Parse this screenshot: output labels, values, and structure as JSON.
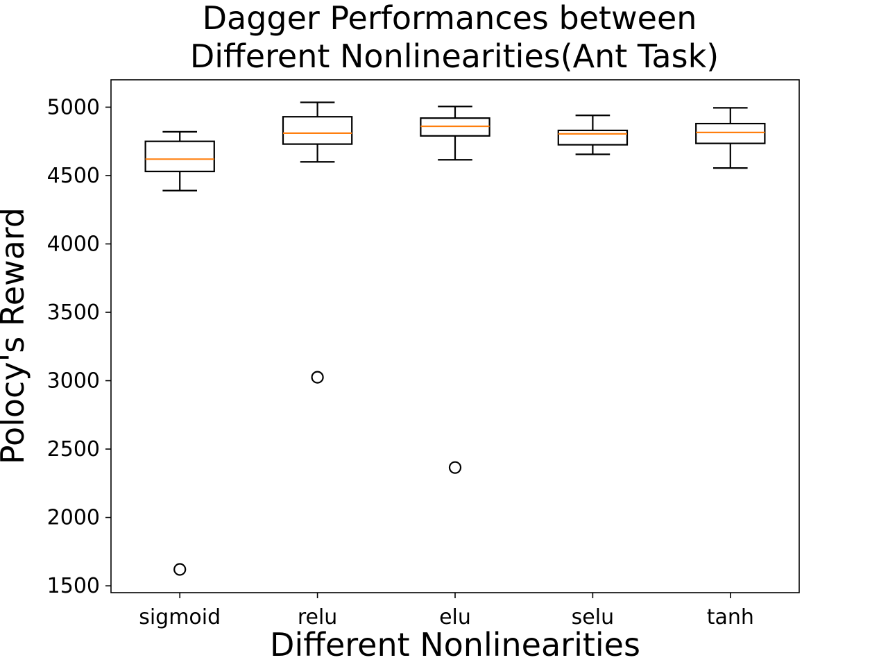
{
  "chart_data": {
    "type": "box",
    "title": "Dagger Performances between\nDifferent Nonlinearities(Ant Task)",
    "title_lines": [
      "Dagger Performances between",
      "Different Nonlinearities(Ant Task)"
    ],
    "xlabel": "Different Nonlinearities",
    "ylabel": "Polocy's Reward",
    "categories": [
      "sigmoid",
      "relu",
      "elu",
      "selu",
      "tanh"
    ],
    "ylim": [
      1450,
      5200
    ],
    "yticks": [
      1500,
      2000,
      2500,
      3000,
      3500,
      4000,
      4500,
      5000
    ],
    "grid": false,
    "colors": {
      "box": "#000000",
      "median": "#ff7f0e",
      "outlier": "#000000",
      "background": "#ffffff"
    },
    "boxes": [
      {
        "category": "sigmoid",
        "whisker_low": 4390,
        "q1": 4530,
        "median": 4620,
        "q3": 4750,
        "whisker_high": 4820,
        "outliers": [
          1620
        ]
      },
      {
        "category": "relu",
        "whisker_low": 4600,
        "q1": 4730,
        "median": 4810,
        "q3": 4930,
        "whisker_high": 5035,
        "outliers": [
          3025
        ]
      },
      {
        "category": "elu",
        "whisker_low": 4615,
        "q1": 4790,
        "median": 4860,
        "q3": 4920,
        "whisker_high": 5005,
        "outliers": [
          2365
        ]
      },
      {
        "category": "selu",
        "whisker_low": 4655,
        "q1": 4725,
        "median": 4805,
        "q3": 4830,
        "whisker_high": 4940,
        "outliers": []
      },
      {
        "category": "tanh",
        "whisker_low": 4555,
        "q1": 4735,
        "median": 4815,
        "q3": 4880,
        "whisker_high": 4995,
        "outliers": []
      }
    ]
  }
}
